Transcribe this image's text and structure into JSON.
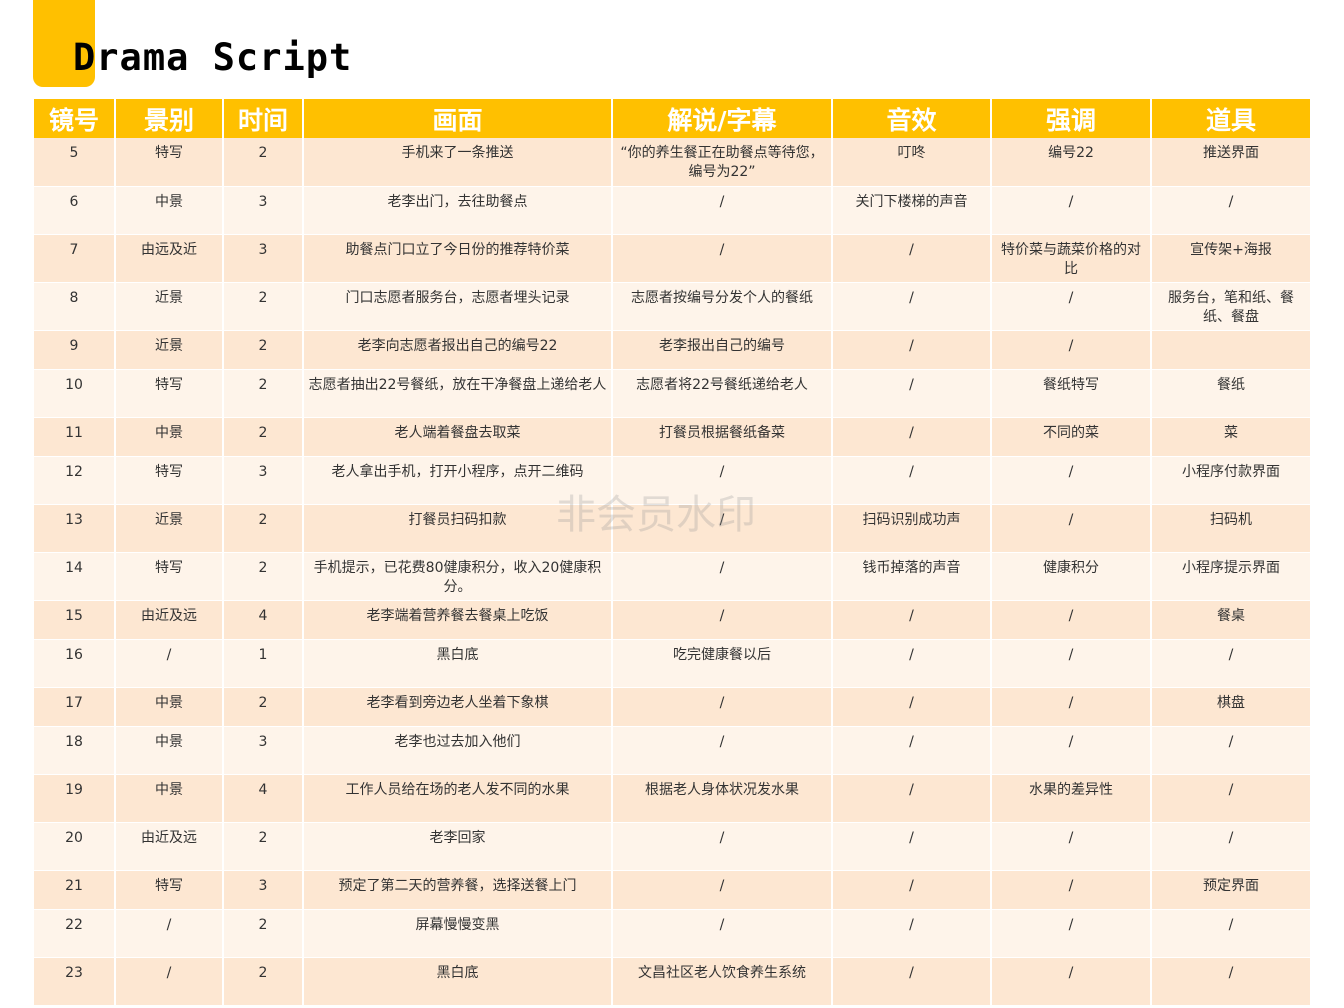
{
  "title": "Drama Script",
  "watermark": "非会员水印",
  "colors": {
    "accent": "#ffc000",
    "row_odd": "#fde7d2",
    "row_even": "#fef4ea"
  },
  "headers": [
    "镜号",
    "景别",
    "时间",
    "画面",
    "解说/字幕",
    "音效",
    "强调",
    "道具"
  ],
  "rows": [
    [
      "5",
      "特写",
      "2",
      "手机来了一条推送",
      "“你的养生餐正在助餐点等待您，编号为22”",
      "叮咚",
      "编号22",
      "推送界面"
    ],
    [
      "6",
      "中景",
      "3",
      "老李出门，去往助餐点",
      "/",
      "关门下楼梯的声音",
      "/",
      "/"
    ],
    [
      "7",
      "由远及近",
      "3",
      "助餐点门口立了今日份的推荐特价菜",
      "/",
      "/",
      "特价菜与蔬菜价格的对比",
      "宣传架+海报"
    ],
    [
      "8",
      "近景",
      "2",
      "门口志愿者服务台，志愿者埋头记录",
      "志愿者按编号分发个人的餐纸",
      "/",
      "/",
      "服务台，笔和纸、餐纸、餐盘"
    ],
    [
      "9",
      "近景",
      "2",
      "老李向志愿者报出自己的编号22",
      "老李报出自己的编号",
      "/",
      "/",
      ""
    ],
    [
      "10",
      "特写",
      "2",
      "志愿者抽出22号餐纸，放在干净餐盘上递给老人",
      "志愿者将22号餐纸递给老人",
      "/",
      "餐纸特写",
      "餐纸"
    ],
    [
      "11",
      "中景",
      "2",
      "老人端着餐盘去取菜",
      "打餐员根据餐纸备菜",
      "/",
      "不同的菜",
      "菜"
    ],
    [
      "12",
      "特写",
      "3",
      "老人拿出手机，打开小程序，点开二维码",
      "/",
      "/",
      "/",
      "小程序付款界面"
    ],
    [
      "13",
      "近景",
      "2",
      "打餐员扫码扣款",
      "/",
      "扫码识别成功声",
      "/",
      "扫码机"
    ],
    [
      "14",
      "特写",
      "2",
      "手机提示，已花费80健康积分，收入20健康积分。",
      "/",
      "钱币掉落的声音",
      "健康积分",
      "小程序提示界面"
    ],
    [
      "15",
      "由近及远",
      "4",
      "老李端着营养餐去餐桌上吃饭",
      "/",
      "/",
      "/",
      "餐桌"
    ],
    [
      "16",
      "/",
      "1",
      "黑白底",
      "吃完健康餐以后",
      "/",
      "/",
      "/"
    ],
    [
      "17",
      "中景",
      "2",
      "老李看到旁边老人坐着下象棋",
      "/",
      "/",
      "/",
      "棋盘"
    ],
    [
      "18",
      "中景",
      "3",
      "老李也过去加入他们",
      "/",
      "/",
      "/",
      "/"
    ],
    [
      "19",
      "中景",
      "4",
      "工作人员给在场的老人发不同的水果",
      "根据老人身体状况发水果",
      "/",
      "水果的差异性",
      "/"
    ],
    [
      "20",
      "由近及远",
      "2",
      "老李回家",
      "/",
      "/",
      "/",
      "/"
    ],
    [
      "21",
      "特写",
      "3",
      "预定了第二天的营养餐，选择送餐上门",
      "/",
      "/",
      "/",
      "预定界面"
    ],
    [
      "22",
      "/",
      "2",
      "屏幕慢慢变黑",
      "/",
      "/",
      "/",
      "/"
    ],
    [
      "23",
      "/",
      "2",
      "黑白底",
      "文昌社区老人饮食养生系统",
      "/",
      "/",
      "/"
    ]
  ]
}
